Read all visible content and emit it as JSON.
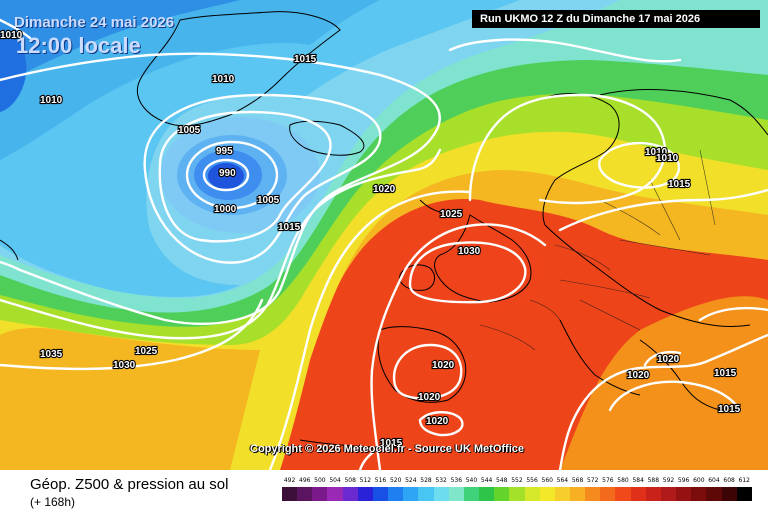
{
  "header": {
    "date": "Dimanche 24 mai 2026",
    "time": "12:00 locale",
    "run": "Run UKMO 12 Z du Dimanche 17 mai 2026"
  },
  "footer": {
    "copyright": "Copyright © 2026 Meteociel.fr - Source UK MetOffice",
    "field_title": "Géop. Z500 & pression au sol",
    "field_subtitle": "(+ 168h)"
  },
  "isobar_labels": [
    "1010",
    "1015",
    "1010",
    "1010",
    "1005",
    "995",
    "990",
    "1000",
    "1005",
    "1015",
    "1020",
    "1025",
    "1030",
    "1035",
    "1025",
    "1030",
    "1020",
    "1020",
    "1020",
    "1015",
    "1010",
    "1010",
    "1015",
    "1020",
    "1020",
    "1015",
    "1015"
  ],
  "scale": {
    "ticks": [
      "492",
      "496",
      "500",
      "504",
      "508",
      "512",
      "516",
      "520",
      "524",
      "528",
      "532",
      "536",
      "540",
      "544",
      "548",
      "552",
      "556",
      "560",
      "564",
      "568",
      "572",
      "576",
      "580",
      "584",
      "588",
      "592",
      "596",
      "600",
      "604",
      "608",
      "612"
    ],
    "colors": [
      "#3b0f3a",
      "#5a1460",
      "#7a1a8a",
      "#9a2ab5",
      "#6a2ad0",
      "#2a22d8",
      "#1850e6",
      "#1f7ef0",
      "#2ea6f5",
      "#47c6f3",
      "#6ddcef",
      "#7fe6c9",
      "#3fd27a",
      "#2ec44a",
      "#63d42c",
      "#a3e02a",
      "#d6e82a",
      "#f4e82a",
      "#f6cd2a",
      "#f6b022",
      "#f58a1e",
      "#f36a1c",
      "#f14a1a",
      "#e0301a",
      "#c8221a",
      "#b01a1a",
      "#961212",
      "#7a0c0c",
      "#5e0808",
      "#3c0404",
      "#000000"
    ]
  },
  "colors": {
    "low_core": "#1f55dd",
    "ridge": "#ee4419",
    "arctic": "#8fd8f2"
  }
}
